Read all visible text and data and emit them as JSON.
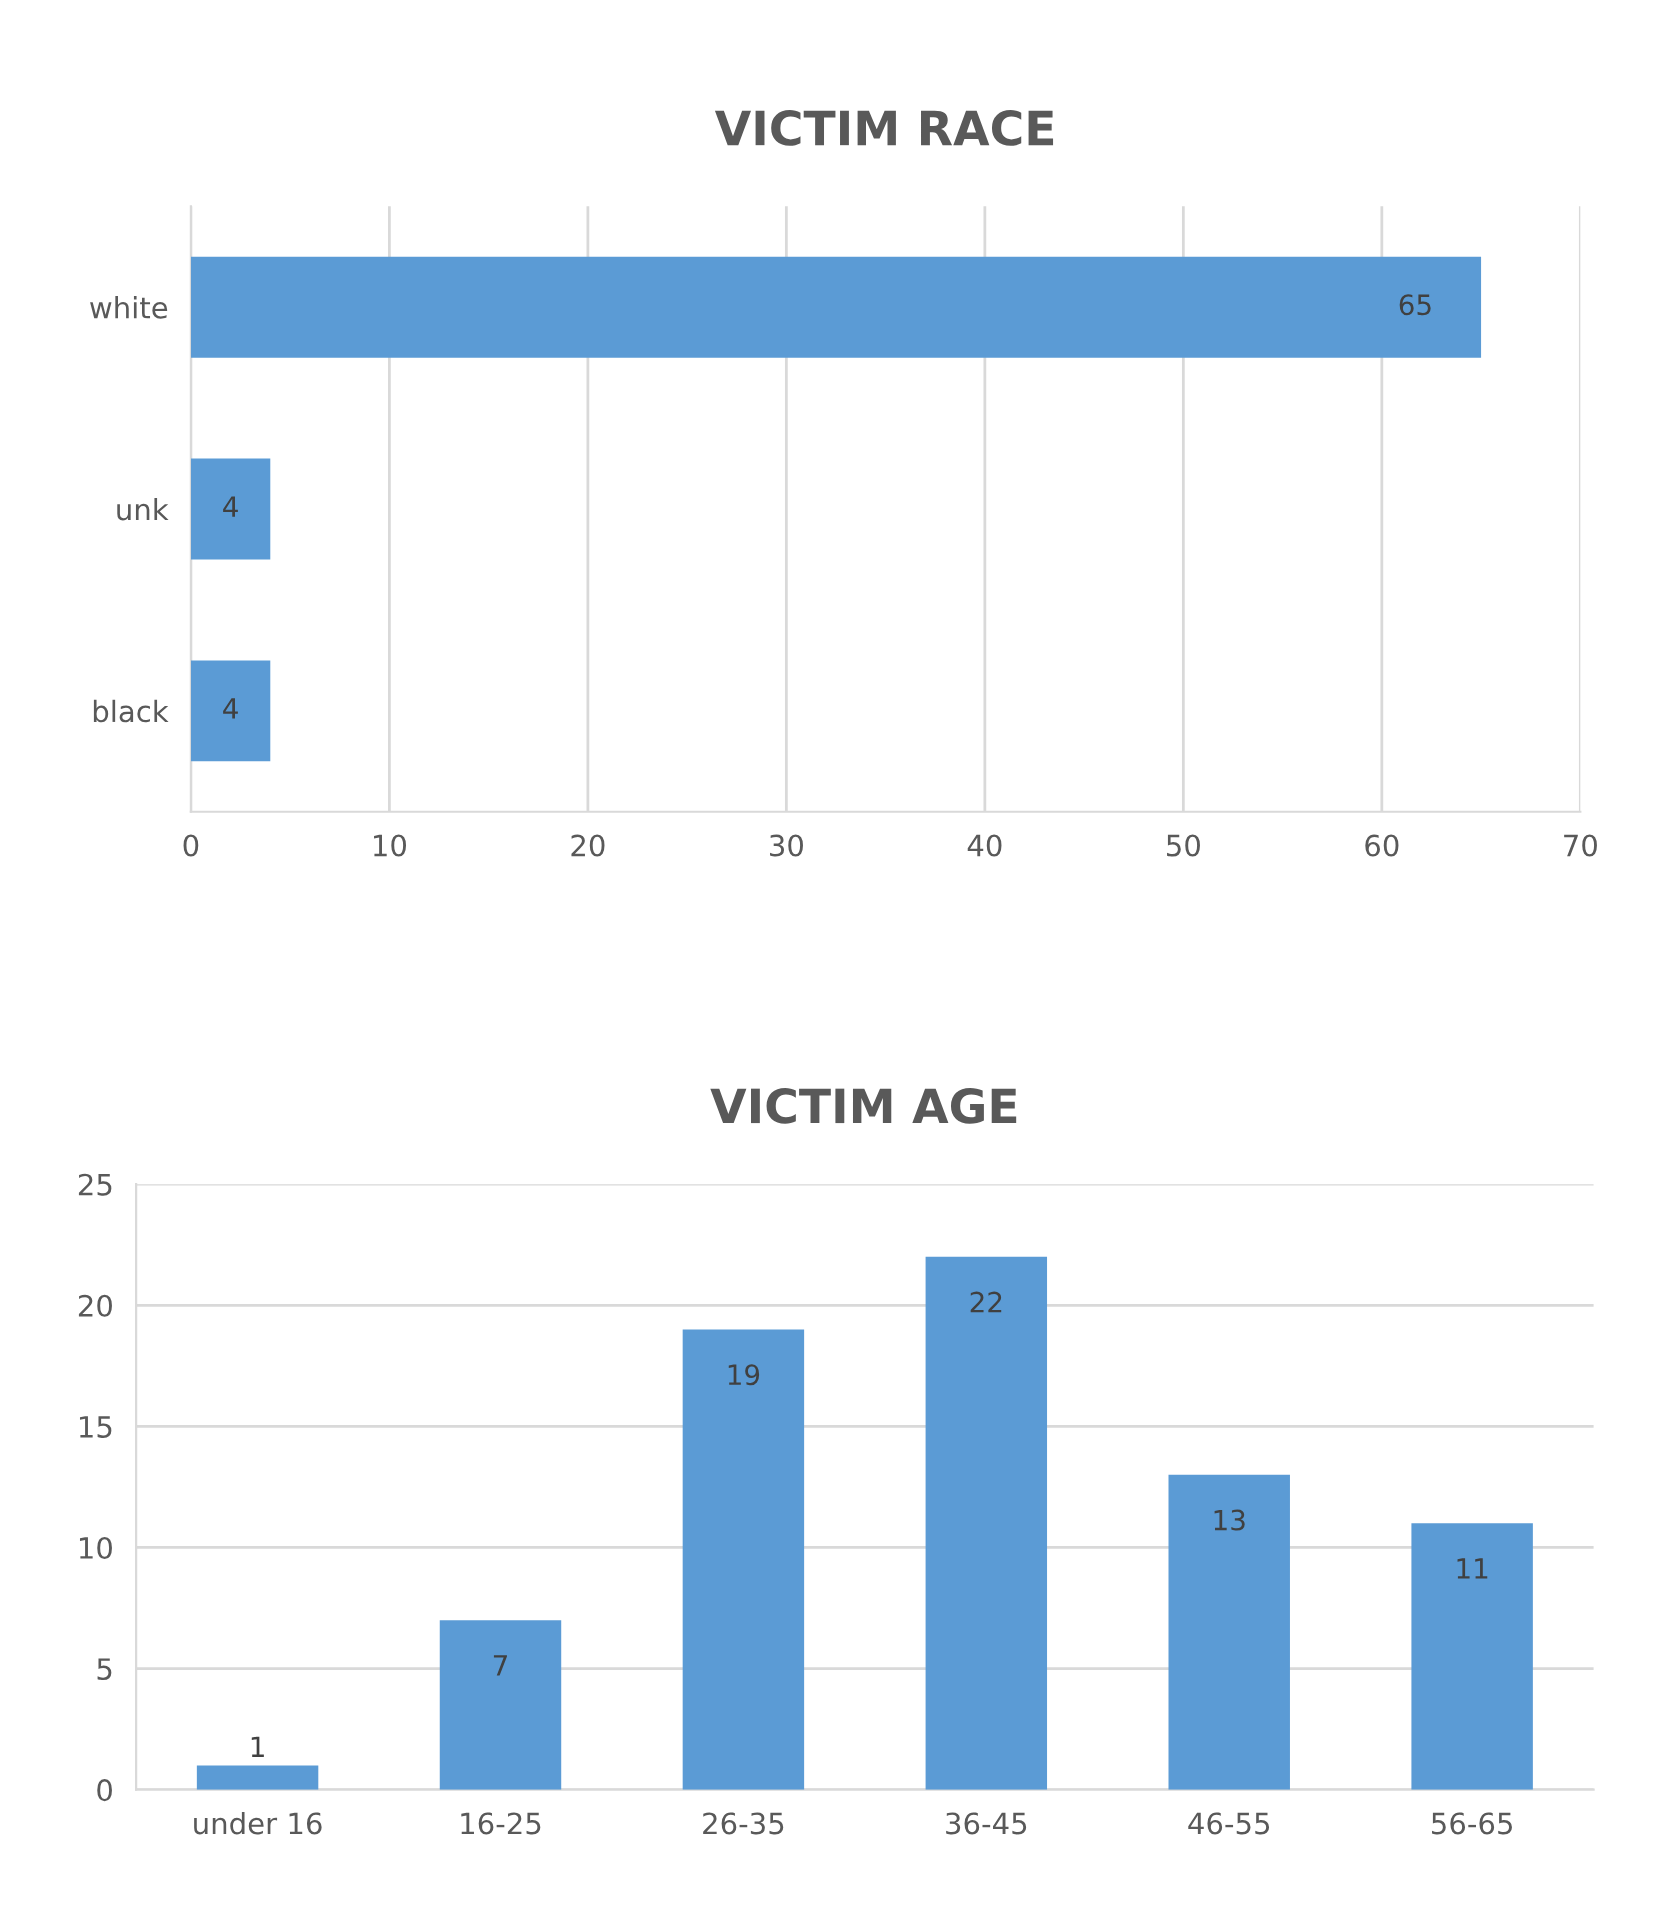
{
  "chart_data": [
    {
      "type": "bar",
      "title": "VICTIM RACE",
      "orientation": "horizontal",
      "categories": [
        "white",
        "unk",
        "black"
      ],
      "values": [
        65,
        4,
        4
      ],
      "color": "#5b9bd5",
      "xlim": [
        0,
        70
      ],
      "xticks": [
        0,
        10,
        20,
        30,
        40,
        50,
        60,
        70
      ],
      "grid": "x",
      "data_labels": true
    },
    {
      "type": "bar",
      "title": "VICTIM AGE",
      "categories": [
        "under 16",
        "16-25",
        "26-35",
        "36-45",
        "46-55",
        "56-65"
      ],
      "values": [
        1,
        7,
        19,
        22,
        13,
        11
      ],
      "color": "#5b9bd5",
      "ylim": [
        0,
        25
      ],
      "yticks": [
        0,
        5,
        10,
        15,
        20,
        25
      ],
      "grid": "y",
      "data_labels": true
    }
  ]
}
